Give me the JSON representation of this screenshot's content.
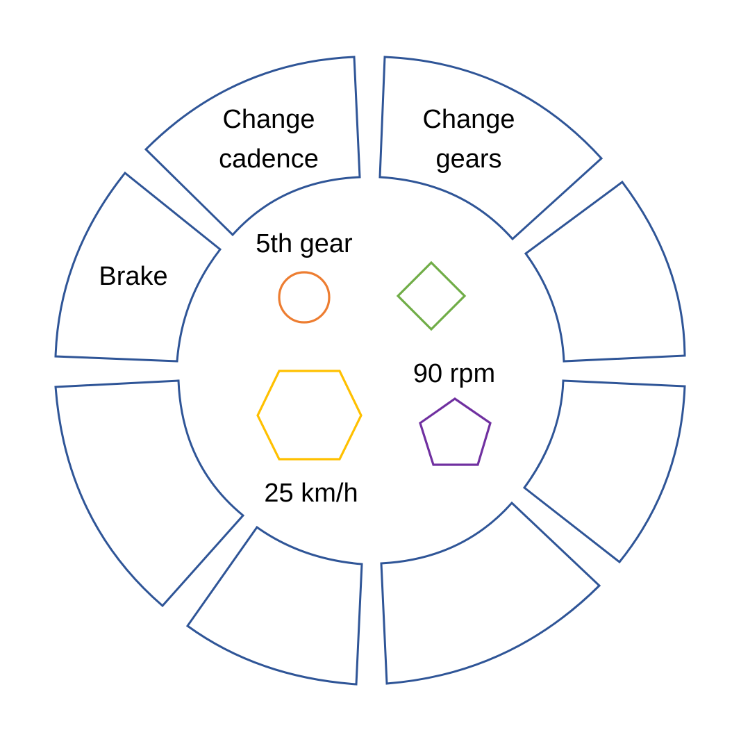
{
  "colors": {
    "segment_outline": "#2f5597",
    "gear_indicator": "#ed7d31",
    "cadence_indicator": "#70ad47",
    "speed_indicator": "#ffc000",
    "extra_indicator": "#7030a0"
  },
  "wheel": {
    "segments": [
      {
        "name": "segment-change-cadence",
        "line1": "Change",
        "line2": "cadence"
      },
      {
        "name": "segment-change-gears",
        "line1": "Change",
        "line2": "gears"
      },
      {
        "name": "segment-brake",
        "line1": "Brake",
        "line2": ""
      },
      {
        "name": "segment-empty-right-upper",
        "line1": "",
        "line2": ""
      },
      {
        "name": "segment-empty-right-lower",
        "line1": "",
        "line2": ""
      },
      {
        "name": "segment-empty-bottom-right",
        "line1": "",
        "line2": ""
      },
      {
        "name": "segment-empty-bottom-left",
        "line1": "",
        "line2": ""
      },
      {
        "name": "segment-empty-left-lower",
        "line1": "",
        "line2": ""
      }
    ]
  },
  "center": {
    "gear_label": "5th gear",
    "cadence_label": "90 rpm",
    "speed_label": "25 km/h",
    "icons": {
      "gear": "circle-icon",
      "cadence": "diamond-icon",
      "speed": "hexagon-icon",
      "extra": "pentagon-icon"
    }
  }
}
